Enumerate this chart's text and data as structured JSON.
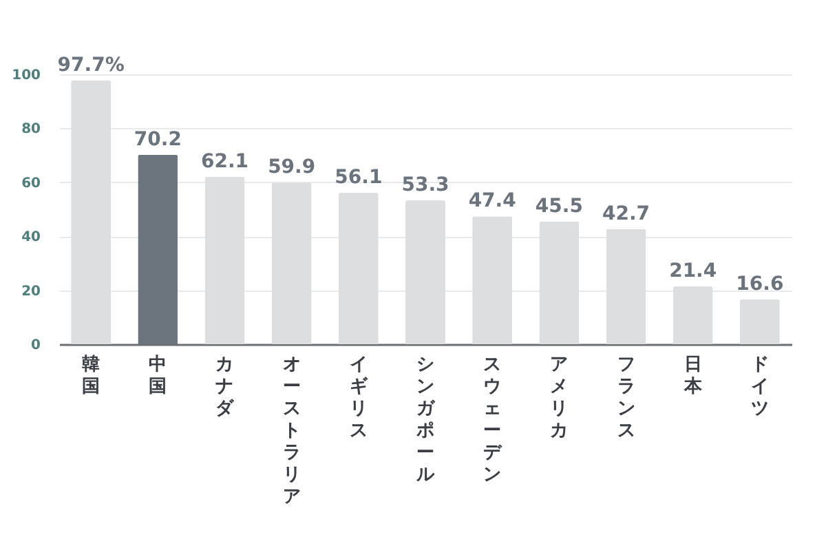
{
  "chart_data": {
    "type": "bar",
    "categories": [
      "韓国",
      "中国",
      "カナダ",
      "オーストラリア",
      "イギリス",
      "シンガポール",
      "スウェーデン",
      "アメリカ",
      "フランス",
      "日本",
      "ドイツ"
    ],
    "values": [
      97.7,
      70.2,
      62.1,
      59.9,
      56.1,
      53.3,
      47.4,
      45.5,
      42.7,
      21.4,
      16.6
    ],
    "value_labels": [
      "97.7%",
      "70.2",
      "62.1",
      "59.9",
      "56.1",
      "53.3",
      "47.4",
      "45.5",
      "42.7",
      "21.4",
      "16.6"
    ],
    "colors": [
      "#dcdee0",
      "#6c757d",
      "#dcdee0",
      "#dcdee0",
      "#dcdee0",
      "#dcdee0",
      "#dcdee0",
      "#dcdee0",
      "#dcdee0",
      "#dcdee0",
      "#dcdee0"
    ],
    "ylim": [
      0,
      100
    ],
    "yticks": [
      0,
      20,
      40,
      60,
      80,
      100
    ],
    "grid": "y"
  }
}
